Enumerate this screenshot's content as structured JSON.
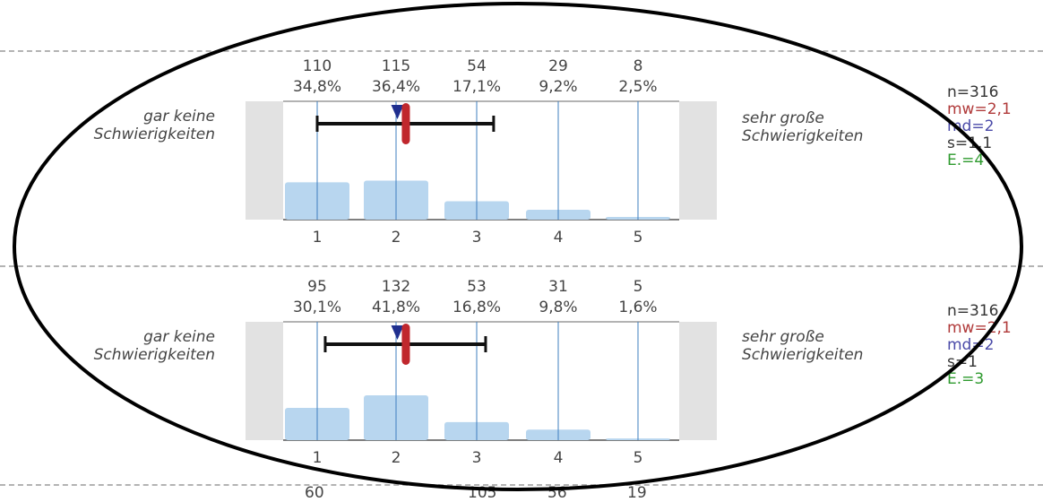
{
  "chart_data": [
    {
      "type": "bar",
      "categories": [
        "1",
        "2",
        "3",
        "4",
        "5"
      ],
      "values": [
        110,
        115,
        54,
        29,
        8
      ],
      "percentages": [
        "34,8%",
        "36,4%",
        "17,1%",
        "9,2%",
        "2,5%"
      ],
      "left_anchor": [
        "gar keine",
        "Schwierigkeiten"
      ],
      "right_anchor": [
        "sehr große",
        "Schwierigkeiten"
      ],
      "stats": {
        "n": "n=316",
        "mw": "mw=2,1",
        "md": "md=2",
        "s": "s=1,1",
        "e": "E.=4"
      },
      "mean": 2.1,
      "median": 2,
      "sd_range": [
        1.0,
        3.2
      ]
    },
    {
      "type": "bar",
      "categories": [
        "1",
        "2",
        "3",
        "4",
        "5"
      ],
      "values": [
        95,
        132,
        53,
        31,
        5
      ],
      "percentages": [
        "30,1%",
        "41,8%",
        "16,8%",
        "9,8%",
        "1,6%"
      ],
      "left_anchor": [
        "gar keine",
        "Schwierigkeiten"
      ],
      "right_anchor": [
        "sehr große",
        "Schwierigkeiten"
      ],
      "stats": {
        "n": "n=316",
        "mw": "mw=2,1",
        "md": "md=2",
        "s": "s=1",
        "e": "E.=3"
      },
      "mean": 2.1,
      "median": 2,
      "sd_range": [
        1.1,
        3.1
      ]
    }
  ],
  "partial_row": {
    "labels": [
      "60",
      "105",
      "56",
      "19"
    ]
  },
  "colors": {
    "bar": "#b8d6ef",
    "gridline": "#3f7fbf",
    "whisker": "#111111",
    "mean_marker": "#c0272d",
    "median_marker": "#1f2f8f",
    "side_panel": "#e2e2e2",
    "frame": "#9a9a9a"
  }
}
